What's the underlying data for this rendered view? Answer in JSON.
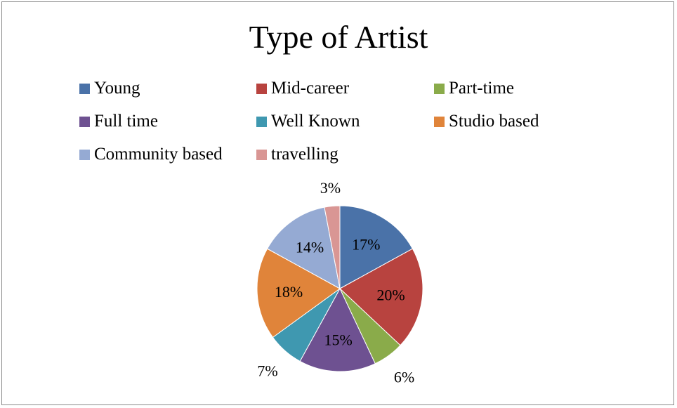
{
  "chart_data": {
    "type": "pie",
    "title": "Type of Artist",
    "legend_placement": "top",
    "slices": [
      {
        "label": "Young",
        "value": 17,
        "display": "17%",
        "color": "#4a72a8"
      },
      {
        "label": "Mid-career",
        "value": 20,
        "display": "20%",
        "color": "#b8433f"
      },
      {
        "label": "Part-time",
        "value": 6,
        "display": "6%",
        "color": "#8aab4a"
      },
      {
        "label": "Full time",
        "value": 15,
        "display": "15%",
        "color": "#6e5191"
      },
      {
        "label": "Well Known",
        "value": 7,
        "display": "7%",
        "color": "#3f98b0"
      },
      {
        "label": "Studio based",
        "value": 18,
        "display": "18%",
        "color": "#e0843a"
      },
      {
        "label": "Community based",
        "value": 14,
        "display": "14%",
        "color": "#95aad3"
      },
      {
        "label": "travelling",
        "value": 3,
        "display": "3%",
        "color": "#d99694"
      }
    ]
  }
}
